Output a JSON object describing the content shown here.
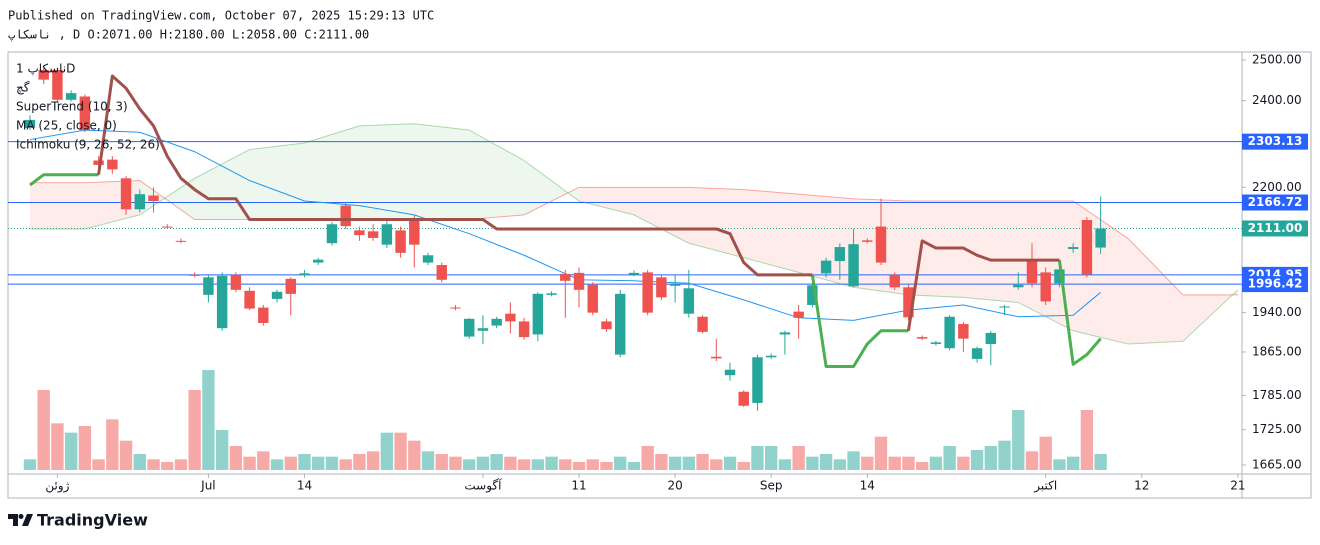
{
  "header": {
    "published": "Published on TradingView.com, October 07, 2025 15:29:13 UTC",
    "ohlc": "ناسکاپ , D O:2071.00 H:2180.00 L:2058.00 C:2111.00"
  },
  "legend": [
    "ناسکاپ 1D",
    "گچ",
    "SuperTrend (10, 3)",
    "MA (25, close, 0)",
    "Ichimoku (9, 26, 52, 26)"
  ],
  "footer": {
    "brand": "TradingView"
  },
  "chart_data": {
    "type": "candlestick",
    "log_scale": true,
    "up_color": "#26a69a",
    "down_color": "#ef5350",
    "xlim": [
      -1.6,
      88.3
    ],
    "ylim": [
      1650,
      2520
    ],
    "yticks": [
      {
        "value": 2500,
        "label": "2500.00"
      },
      {
        "value": 2400,
        "label": "2400.00"
      },
      {
        "value": 2200,
        "label": "2200.00"
      },
      {
        "value": 1940,
        "label": "1940.00"
      },
      {
        "value": 1865,
        "label": "1865.00"
      },
      {
        "value": 1785,
        "label": "1785.00"
      },
      {
        "value": 1725,
        "label": "1725.00"
      },
      {
        "value": 1665,
        "label": "1665.00"
      }
    ],
    "xticks": [
      {
        "value": 2,
        "label": "ژوئن"
      },
      {
        "value": 13,
        "label": "Jul"
      },
      {
        "value": 20,
        "label": "14"
      },
      {
        "value": 33,
        "label": "آگوست"
      },
      {
        "value": 40,
        "label": "11"
      },
      {
        "value": 47,
        "label": "20"
      },
      {
        "value": 54,
        "label": "Sep"
      },
      {
        "value": 61,
        "label": "14"
      },
      {
        "value": 74,
        "label": "اکتبر"
      },
      {
        "value": 81,
        "label": "12"
      },
      {
        "value": 88,
        "label": "21"
      }
    ],
    "open": [
      2335,
      2475,
      2475,
      2402,
      2410,
      2260,
      2262,
      2220,
      2152,
      2182,
      2115,
      2085,
      2015,
      1975,
      1910,
      2015,
      1983,
      1950,
      1967,
      2007,
      2015,
      2040,
      2080,
      2160,
      2107,
      2105,
      2077,
      2107,
      2131,
      2040,
      2035,
      1950,
      1894,
      1905,
      1915,
      1938,
      1923,
      1898,
      1975,
      2017,
      2019,
      1995,
      1923,
      1860,
      2015,
      2020,
      2010,
      1993,
      1938,
      1932,
      1856,
      1822,
      1792,
      1772,
      1855,
      1898,
      1942,
      1955,
      2018,
      2043,
      1992,
      2086,
      2115,
      2015,
      1990,
      1893,
      1880,
      1872,
      1918,
      1852,
      1880,
      1950,
      1990,
      2043,
      2020,
      1998,
      2068,
      2129,
      2071
    ],
    "high": [
      2365,
      2485,
      2480,
      2425,
      2415,
      2270,
      2270,
      2225,
      2195,
      2200,
      2120,
      2090,
      2020,
      2015,
      2020,
      2020,
      1990,
      1955,
      1985,
      2010,
      2025,
      2050,
      2125,
      2165,
      2115,
      2120,
      2130,
      2115,
      2140,
      2060,
      2040,
      1955,
      1930,
      1935,
      1932,
      1960,
      1930,
      1980,
      1982,
      2025,
      2030,
      2000,
      1928,
      1985,
      2024,
      2025,
      2015,
      2015,
      2025,
      1935,
      1890,
      1845,
      1795,
      1860,
      1862,
      1905,
      1955,
      2000,
      2050,
      2080,
      2110,
      2090,
      2175,
      2020,
      1995,
      1896,
      1886,
      1935,
      1922,
      1875,
      1905,
      1955,
      2020,
      2080,
      2030,
      2040,
      2080,
      2135,
      2180
    ],
    "low": [
      2330,
      2440,
      2395,
      2398,
      2325,
      2245,
      2230,
      2140,
      2145,
      2145,
      2110,
      2080,
      2010,
      1960,
      1905,
      1980,
      1945,
      1915,
      1960,
      1935,
      2010,
      2035,
      2075,
      2110,
      2085,
      2085,
      2070,
      2050,
      2030,
      2035,
      2000,
      1945,
      1890,
      1880,
      1910,
      1900,
      1888,
      1885,
      1972,
      1930,
      1950,
      1935,
      1903,
      1855,
      2012,
      1935,
      1965,
      1960,
      1930,
      1900,
      1848,
      1812,
      1765,
      1758,
      1852,
      1860,
      1890,
      1950,
      2010,
      2005,
      1990,
      2080,
      2035,
      1985,
      1925,
      1887,
      1877,
      1868,
      1865,
      1845,
      1840,
      1935,
      1985,
      1990,
      1955,
      1990,
      2060,
      2010,
      2058
    ],
    "close": [
      2354,
      2451,
      2402,
      2418,
      2330,
      2250,
      2240,
      2152,
      2185,
      2170,
      2113,
      2083,
      2013,
      2010,
      2013,
      1985,
      1948,
      1920,
      1981,
      1977,
      2018,
      2046,
      2120,
      2116,
      2097,
      2091,
      2120,
      2060,
      2077,
      2055,
      2005,
      1948,
      1928,
      1910,
      1928,
      1923,
      1893,
      1977,
      1978,
      2003,
      1985,
      1940,
      1908,
      1977,
      2019,
      1940,
      1970,
      1996,
      1988,
      1903,
      1853,
      1832,
      1767,
      1855,
      1858,
      1902,
      1930,
      1994,
      2044,
      2072,
      2078,
      2083,
      2040,
      1990,
      1931,
      1890,
      1883,
      1932,
      1890,
      1872,
      1901,
      1952,
      1995,
      1998,
      1962,
      2026,
      2072,
      2016,
      2111
    ],
    "volume": [
      8,
      60,
      35,
      28,
      33,
      8,
      38,
      22,
      12,
      8,
      6,
      8,
      60,
      75,
      30,
      18,
      10,
      14,
      8,
      10,
      12,
      10,
      10,
      8,
      12,
      14,
      28,
      28,
      22,
      14,
      12,
      10,
      8,
      10,
      12,
      10,
      8,
      8,
      10,
      8,
      6,
      8,
      6,
      10,
      6,
      18,
      12,
      10,
      10,
      12,
      8,
      10,
      6,
      18,
      18,
      8,
      18,
      10,
      12,
      8,
      14,
      10,
      25,
      10,
      10,
      6,
      10,
      18,
      10,
      15,
      18,
      22,
      45,
      14,
      25,
      8,
      10,
      45,
      12
    ],
    "supertrend": {
      "up_color": "#4caf50",
      "down_color": "#a1504a",
      "up": [
        2205,
        2228,
        2228,
        2228,
        2228,
        2228,
        null,
        null,
        null,
        null,
        null,
        null,
        null,
        null,
        null,
        null,
        null,
        null,
        null,
        null,
        null,
        null,
        null,
        null,
        null,
        null,
        null,
        null,
        null,
        null,
        null,
        null,
        null,
        null,
        null,
        null,
        null,
        null,
        null,
        null,
        null,
        null,
        null,
        null,
        null,
        null,
        null,
        null,
        null,
        null,
        null,
        null,
        null,
        null,
        null,
        null,
        null,
        2015,
        1838,
        1838,
        1838,
        1880,
        1905,
        1905,
        1905,
        null,
        null,
        null,
        null,
        null,
        null,
        null,
        null,
        null,
        null,
        2045,
        1842,
        1860,
        1890
      ],
      "down": [
        null,
        null,
        null,
        null,
        null,
        2228,
        2460,
        2430,
        2380,
        2340,
        2270,
        2220,
        2195,
        2175,
        2175,
        2175,
        2130,
        2130,
        2130,
        2130,
        2130,
        2130,
        2130,
        2130,
        2130,
        2130,
        2130,
        2130,
        2130,
        2130,
        2130,
        2130,
        2130,
        2130,
        2110,
        2110,
        2110,
        2110,
        2110,
        2110,
        2110,
        2110,
        2110,
        2110,
        2110,
        2110,
        2110,
        2110,
        2110,
        2110,
        2110,
        2100,
        2040,
        2015,
        2015,
        2015,
        2015,
        2015,
        null,
        null,
        null,
        null,
        null,
        null,
        1905,
        2085,
        2070,
        2070,
        2070,
        2055,
        2045,
        2045,
        2045,
        2045,
        2045,
        2045,
        null,
        null,
        null
      ]
    },
    "ma": {
      "color": "#2196f3",
      "x": [
        0,
        4,
        8,
        12,
        16,
        20,
        24,
        28,
        32,
        36,
        40,
        44,
        48,
        52,
        56,
        60,
        64,
        68,
        72,
        76,
        78
      ],
      "values": [
        2308,
        2330,
        2325,
        2280,
        2215,
        2170,
        2160,
        2140,
        2100,
        2055,
        2005,
        2003,
        1998,
        1965,
        1930,
        1925,
        1945,
        1955,
        1932,
        1935,
        1980
      ]
    },
    "cloud": {
      "up_color": "#4caf50",
      "down_color": "#f44336",
      "x": [
        0,
        4,
        8,
        12,
        16,
        20,
        24,
        28,
        32,
        36,
        40,
        44,
        48,
        52,
        56,
        60,
        64,
        68,
        72,
        76,
        80,
        84,
        88
      ],
      "span_a": [
        2110,
        2110,
        2140,
        2220,
        2285,
        2300,
        2340,
        2345,
        2330,
        2260,
        2170,
        2140,
        2080,
        2050,
        2020,
        1990,
        1975,
        1970,
        1960,
        1905,
        1880,
        1885,
        1985
      ],
      "span_b": [
        2210,
        2210,
        2215,
        2130,
        2130,
        2130,
        2130,
        2130,
        2130,
        2140,
        2200,
        2200,
        2200,
        2195,
        2185,
        2175,
        2170,
        2170,
        2170,
        2170,
        2090,
        1975,
        1975
      ]
    },
    "levels": [
      {
        "value": 2303.13,
        "label": "2303.13",
        "color": "#2962ff",
        "style": "solid"
      },
      {
        "value": 2166.72,
        "label": "2166.72",
        "color": "#2962ff",
        "style": "solid"
      },
      {
        "value": 2111,
        "label": "2111.00",
        "color": "#26a69a",
        "style": "dotted"
      },
      {
        "value": 2014.95,
        "label": "2014.95",
        "color": "#2962ff",
        "style": "solid"
      },
      {
        "value": 1996.42,
        "label": "1996.42",
        "color": "#2962ff",
        "style": "solid"
      }
    ]
  }
}
